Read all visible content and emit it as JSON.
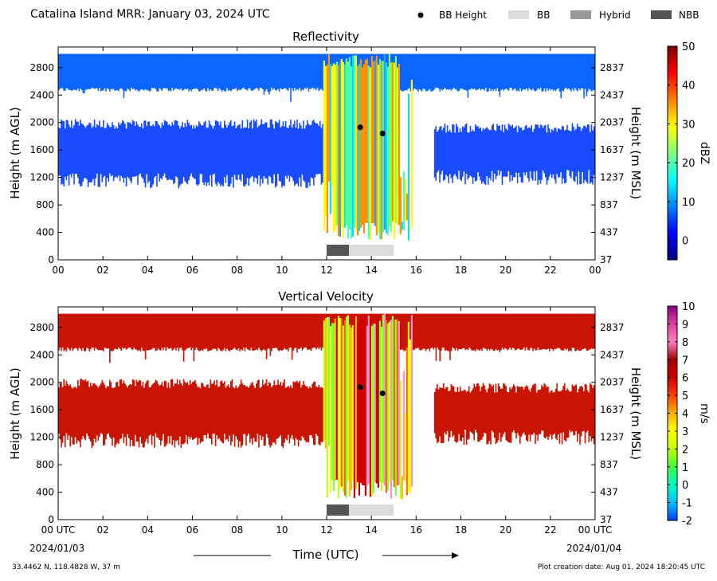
{
  "header": {
    "title": "Catalina Island MRR:  January 03, 2024 UTC",
    "legend": [
      {
        "label": "BB Height",
        "kind": "dot",
        "color": "#000000"
      },
      {
        "label": "BB",
        "kind": "rect",
        "color": "#dcdcdc"
      },
      {
        "label": "Hybrid",
        "kind": "rect",
        "color": "#999999"
      },
      {
        "label": "NBB",
        "kind": "rect",
        "color": "#555555"
      }
    ]
  },
  "footer": {
    "coords": "33.4462 N, 118.4828 W, 37 m",
    "created": "Plot creation date: Aug 01, 2024 18:20:45 UTC",
    "xlabel": "Time (UTC)",
    "date_start": "2024/01/03",
    "date_end": "2024/01/04"
  },
  "chart_data": [
    {
      "type": "heatmap",
      "title": "Reflectivity",
      "ylabel": "Height (m AGL)",
      "ylabel_right": "Height (m MSL)",
      "x_ticks": [
        "00",
        "02",
        "04",
        "06",
        "08",
        "10",
        "12",
        "14",
        "16",
        "18",
        "20",
        "22",
        "00"
      ],
      "xlim": [
        0,
        24
      ],
      "ylim": [
        0,
        3100
      ],
      "y_ticks": [
        0,
        400,
        800,
        1200,
        1600,
        2000,
        2400,
        2800
      ],
      "y_ticks_right": [
        "37",
        "437",
        "837",
        "1237",
        "1637",
        "2037",
        "2437",
        "2837"
      ],
      "colorbar": {
        "label": "dBZ",
        "range": [
          -5,
          50
        ],
        "ticks": [
          0,
          10,
          20,
          30,
          40,
          50
        ],
        "colors": [
          "#00007f",
          "#0000ff",
          "#0080ff",
          "#00ffff",
          "#80ff80",
          "#ffff00",
          "#ff8000",
          "#ff0000",
          "#7f0000"
        ]
      },
      "bb_height": [
        {
          "time": 13.5,
          "height": 1930
        },
        {
          "time": 14.5,
          "height": 1840
        }
      ],
      "bb_type": [
        {
          "start": 12.0,
          "end": 13.0,
          "type": "NBB"
        },
        {
          "start": 13.0,
          "end": 15.0,
          "type": "BB"
        }
      ],
      "echo_layers": [
        {
          "start": 0,
          "end": 24,
          "bottom": 2480,
          "top": 3000
        },
        {
          "start": 0,
          "end": 11.85,
          "bottom": 1150,
          "top": 1980
        },
        {
          "start": 16.8,
          "end": 24,
          "bottom": 1200,
          "top": 1920
        }
      ],
      "precip": {
        "start": 11.85,
        "end": 15.8,
        "bottom": 280,
        "top": 3000
      }
    },
    {
      "type": "heatmap",
      "title": "Vertical Velocity",
      "ylabel": "Height (m AGL)",
      "ylabel_right": "Height (m MSL)",
      "x_ticks": [
        "00 UTC",
        "02",
        "04",
        "06",
        "08",
        "10",
        "12",
        "14",
        "16",
        "18",
        "20",
        "22",
        "00 UTC"
      ],
      "xlim": [
        0,
        24
      ],
      "ylim": [
        0,
        3100
      ],
      "y_ticks": [
        0,
        400,
        800,
        1200,
        1600,
        2000,
        2400,
        2800
      ],
      "y_ticks_right": [
        "37",
        "437",
        "837",
        "1237",
        "1637",
        "2037",
        "2437",
        "2837"
      ],
      "colorbar": {
        "label": "m/s",
        "range": [
          -2,
          10
        ],
        "ticks": [
          -2,
          -1,
          0,
          1,
          2,
          3,
          4,
          5,
          6,
          7,
          8,
          9,
          10
        ],
        "colors": [
          "#0040ff",
          "#00c0ff",
          "#00ffc0",
          "#40ff40",
          "#c0ff00",
          "#ffff00",
          "#ffb000",
          "#ff4000",
          "#d00000",
          "#a00000",
          "#ff80c0",
          "#e040a0",
          "#800080"
        ]
      },
      "bb_height": [
        {
          "time": 13.5,
          "height": 1930
        },
        {
          "time": 14.5,
          "height": 1840
        }
      ],
      "bb_type": [
        {
          "start": 12.0,
          "end": 13.0,
          "type": "NBB"
        },
        {
          "start": 13.0,
          "end": 15.0,
          "type": "BB"
        }
      ],
      "echo_layers": [
        {
          "start": 0,
          "end": 24,
          "bottom": 2480,
          "top": 3000
        },
        {
          "start": 0,
          "end": 11.85,
          "bottom": 1150,
          "top": 1980
        },
        {
          "start": 16.8,
          "end": 24,
          "bottom": 1200,
          "top": 1920
        }
      ],
      "precip": {
        "start": 11.85,
        "end": 15.8,
        "bottom": 280,
        "top": 3000
      }
    }
  ],
  "style": {
    "refl_echo": "#1a4cff",
    "refl_echo_top": "#0a66ff",
    "vel_echo": "#c81400",
    "precip_refl": [
      "#00e0ff",
      "#40ffc0",
      "#80ff60",
      "#ffff00",
      "#ff9000",
      "#20a0ff"
    ],
    "precip_vel": [
      "#80ff40",
      "#c0ff20",
      "#ffff00",
      "#ffc000",
      "#ff6000",
      "#d00000",
      "#ff90d0"
    ]
  }
}
